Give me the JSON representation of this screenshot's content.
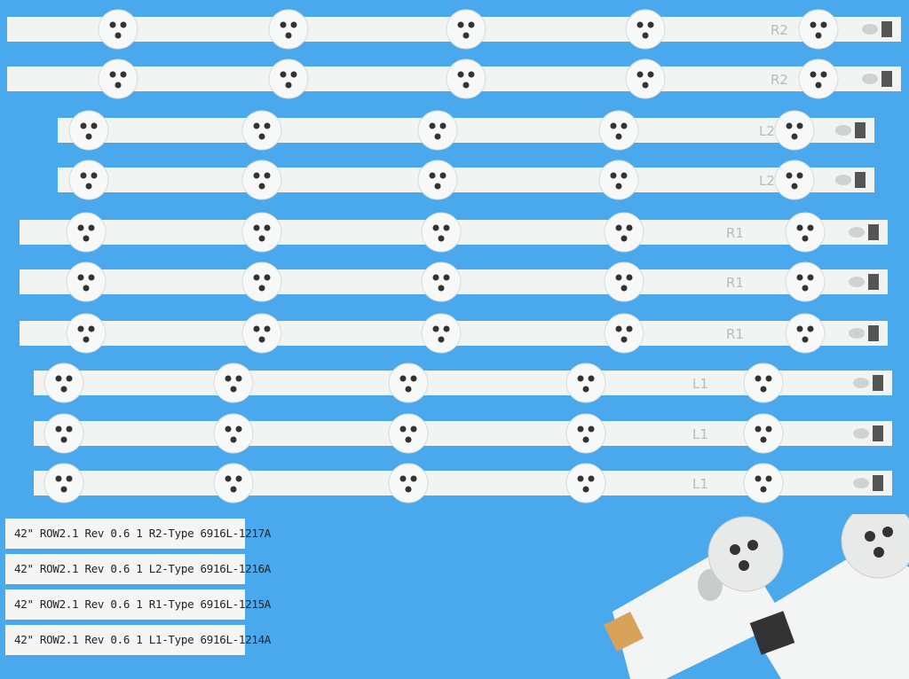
{
  "strips": [
    {
      "type": "R2",
      "led_count": 5
    },
    {
      "type": "R2",
      "led_count": 5
    },
    {
      "type": "L2",
      "led_count": 5
    },
    {
      "type": "L2",
      "led_count": 5
    },
    {
      "type": "R1",
      "led_count": 5
    },
    {
      "type": "R1",
      "led_count": 5
    },
    {
      "type": "R1",
      "led_count": 5
    },
    {
      "type": "L1",
      "led_count": 5
    },
    {
      "type": "L1",
      "led_count": 5
    },
    {
      "type": "L1",
      "led_count": 5
    }
  ],
  "part_labels": [
    "42\" ROW2.1 Rev 0.6 1 R2-Type 6916L-1217A",
    "42\" ROW2.1 Rev 0.6 1 L2-Type 6916L-1216A",
    "42\" ROW2.1 Rev 0.6 1 R1-Type 6916L-1215A",
    "42\" ROW2.1 Rev 0.6 1 L1-Type 6916L-1214A"
  ],
  "colors": {
    "background": "#4aa8ec",
    "strip": "#f2f3f3",
    "led_dot": "#333333"
  }
}
